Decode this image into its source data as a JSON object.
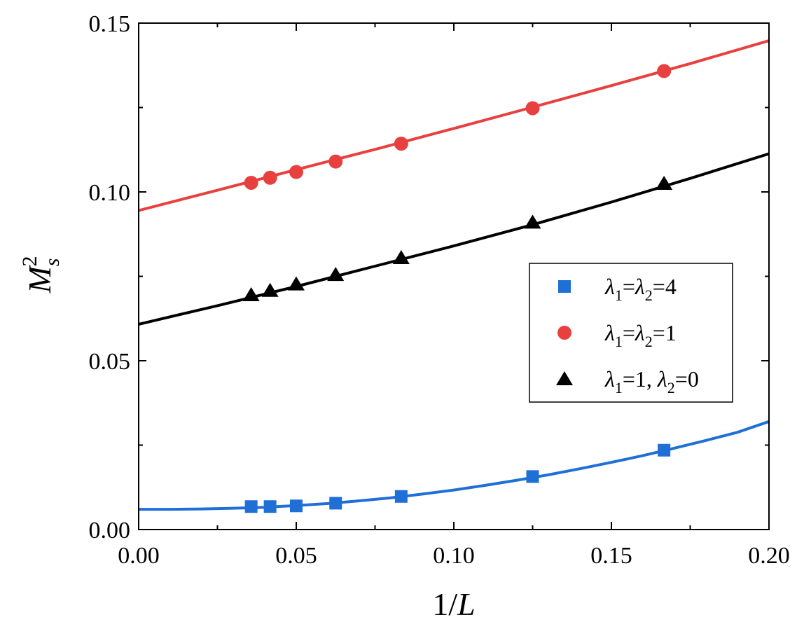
{
  "chart_data": {
    "type": "scatter",
    "xlabel": "1/L",
    "ylabel": "M_s^2",
    "xlim": [
      0.0,
      0.2
    ],
    "ylim": [
      0.0,
      0.15
    ],
    "x_major_ticks": [
      0.0,
      0.05,
      0.1,
      0.15,
      0.2
    ],
    "x_tick_labels": [
      "0.00",
      "0.05",
      "0.10",
      "0.15",
      "0.20"
    ],
    "y_major_ticks": [
      0.0,
      0.05,
      0.1,
      0.15
    ],
    "y_tick_labels": [
      "0.00",
      "0.05",
      "0.10",
      "0.15"
    ],
    "x_minor_ticks": [
      0.025,
      0.075,
      0.125,
      0.175
    ],
    "y_minor_ticks": [
      0.025,
      0.075,
      0.125
    ],
    "grid": false,
    "legend_position": "center-right",
    "series": [
      {
        "name": "λ1=λ2=4",
        "legend_parts": {
          "a": "λ",
          "a_sub": "1",
          "eq1": "=",
          "b": "λ",
          "b_sub": "2",
          "tail": "=4"
        },
        "color": "#1f6fd6",
        "marker": "square",
        "x": [
          0.0357,
          0.0417,
          0.05,
          0.0625,
          0.0833,
          0.125,
          0.1667
        ],
        "y": [
          0.0068,
          0.0068,
          0.007,
          0.0078,
          0.0098,
          0.0157,
          0.0235
        ],
        "fit_line": {
          "x": [
            0.0,
            0.01,
            0.02,
            0.03,
            0.04,
            0.05,
            0.06,
            0.07,
            0.08,
            0.09,
            0.1,
            0.11,
            0.12,
            0.13,
            0.14,
            0.15,
            0.16,
            0.17,
            0.18,
            0.19,
            0.2
          ],
          "y": [
            0.006,
            0.006,
            0.0061,
            0.0063,
            0.0066,
            0.0071,
            0.0077,
            0.0085,
            0.0094,
            0.0105,
            0.0117,
            0.0131,
            0.0146,
            0.0162,
            0.018,
            0.0199,
            0.0219,
            0.0241,
            0.0264,
            0.0288,
            0.032
          ]
        }
      },
      {
        "name": "λ1=λ2=1",
        "legend_parts": {
          "a": "λ",
          "a_sub": "1",
          "eq1": "=",
          "b": "λ",
          "b_sub": "2",
          "tail": "=1"
        },
        "color": "#e8403f",
        "marker": "circle",
        "x": [
          0.0357,
          0.0417,
          0.05,
          0.0625,
          0.0833,
          0.125,
          0.1667
        ],
        "y": [
          0.1027,
          0.1042,
          0.1059,
          0.109,
          0.1143,
          0.1248,
          0.1358
        ],
        "fit_line": {
          "x": [
            0.0,
            0.025,
            0.05,
            0.075,
            0.1,
            0.125,
            0.15,
            0.175,
            0.2
          ],
          "y": [
            0.0945,
            0.1005,
            0.1066,
            0.1126,
            0.1188,
            0.1251,
            0.1315,
            0.138,
            0.1448
          ]
        }
      },
      {
        "name": "λ1=1, λ2=0",
        "legend_parts": {
          "a": "λ",
          "a_sub": "1",
          "eq1": "=1, ",
          "b": "λ",
          "b_sub": "2",
          "tail": "=0"
        },
        "color": "#000000",
        "marker": "triangle",
        "x": [
          0.0357,
          0.0417,
          0.05,
          0.0625,
          0.0833,
          0.125,
          0.1667
        ],
        "y": [
          0.0695,
          0.0708,
          0.0727,
          0.0755,
          0.0805,
          0.091,
          0.1025
        ],
        "fit_line": {
          "x": [
            0.0,
            0.025,
            0.05,
            0.075,
            0.1,
            0.125,
            0.15,
            0.175,
            0.2
          ],
          "y": [
            0.0608,
            0.0663,
            0.072,
            0.078,
            0.084,
            0.0903,
            0.097,
            0.104,
            0.1113
          ]
        }
      }
    ]
  }
}
